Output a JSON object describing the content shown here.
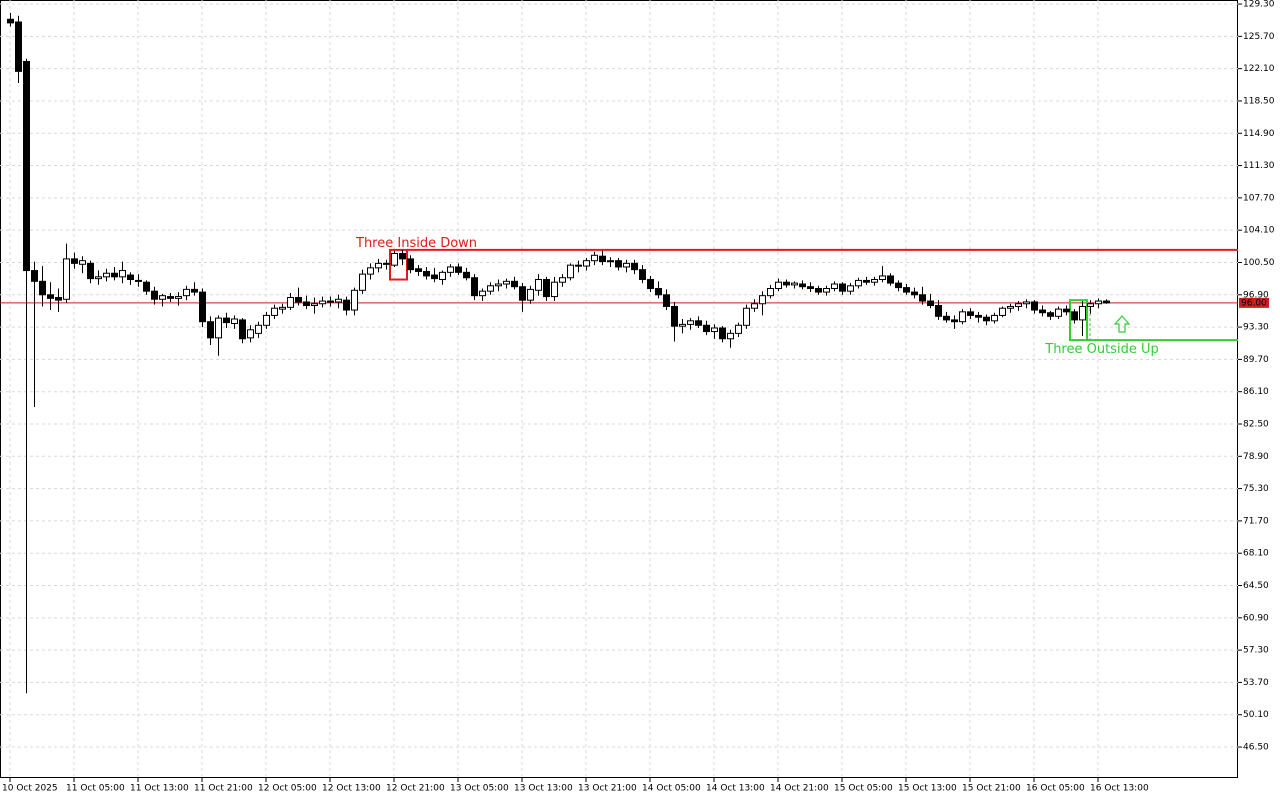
{
  "chart_data": {
    "type": "candlestick",
    "categories": [
      "10 Oct 2025",
      null,
      null,
      null,
      null,
      null,
      null,
      null,
      "11 Oct 05:00",
      null,
      null,
      null,
      null,
      null,
      null,
      null,
      "11 Oct 13:00",
      null,
      null,
      null,
      null,
      null,
      null,
      null,
      "11 Oct 21:00",
      null,
      null,
      null,
      null,
      null,
      null,
      null,
      "12 Oct 05:00",
      null,
      null,
      null,
      null,
      null,
      null,
      null,
      "12 Oct 13:00",
      null,
      null,
      null,
      null,
      null,
      null,
      null,
      "12 Oct 21:00",
      null,
      null,
      null,
      null,
      null,
      null,
      null,
      "13 Oct 05:00",
      null,
      null,
      null,
      null,
      null,
      null,
      null,
      "13 Oct 13:00",
      null,
      null,
      null,
      null,
      null,
      null,
      null,
      "13 Oct 21:00",
      null,
      null,
      null,
      null,
      null,
      null,
      null,
      "14 Oct 05:00",
      null,
      null,
      null,
      null,
      null,
      null,
      null,
      "14 Oct 13:00",
      null,
      null,
      null,
      null,
      null,
      null,
      null,
      "14 Oct 21:00",
      null,
      null,
      null,
      null,
      null,
      null,
      null,
      "15 Oct 05:00",
      null,
      null,
      null,
      null,
      null,
      null,
      null,
      "15 Oct 13:00",
      null,
      null,
      null,
      null,
      null,
      null,
      null,
      "15 Oct 21:00",
      null,
      null,
      null,
      null,
      null,
      null,
      null,
      "16 Oct 05:00",
      null,
      null,
      null,
      null,
      null,
      null,
      null,
      "16 Oct 13:00",
      null
    ],
    "open": [
      127.6,
      127.3,
      122.9,
      99.6,
      98.4,
      96.9,
      96.6,
      96.4,
      100.9,
      100.3,
      100.4,
      98.7,
      98.9,
      99.3,
      98.9,
      99.1,
      98.5,
      98.3,
      97.3,
      96.4,
      96.7,
      96.5,
      96.8,
      97.5,
      97.2,
      93.9,
      92.1,
      94.3,
      93.7,
      94.1,
      92.1,
      92.6,
      93.5,
      94.6,
      95.3,
      95.5,
      96.6,
      96.1,
      95.7,
      95.9,
      96.2,
      96.1,
      96.3,
      95.2,
      97.4,
      99.2,
      99.9,
      100.4,
      100.2,
      101.5,
      100.9,
      99.8,
      99.5,
      99.1,
      98.6,
      99.4,
      100.0,
      99.4,
      98.8,
      96.8,
      97.3,
      97.9,
      98.1,
      98.4,
      97.8,
      96.3,
      97.4,
      98.6,
      96.7,
      98.3,
      98.8,
      100.2,
      100.1,
      100.7,
      101.2,
      100.6,
      100.7,
      100.0,
      100.4,
      99.7,
      98.6,
      97.6,
      96.9,
      95.6,
      93.4,
      93.6,
      94.0,
      93.5,
      92.8,
      93.2,
      92.0,
      92.6,
      93.5,
      95.4,
      95.9,
      96.8,
      97.6,
      98.3,
      98.0,
      98.1,
      97.8,
      97.6,
      97.2,
      97.6,
      98.1,
      97.3,
      97.9,
      98.5,
      98.3,
      98.6,
      99.0,
      98.2,
      97.7,
      97.2,
      96.9,
      96.2,
      95.7,
      94.5,
      94.1,
      93.9,
      95.0,
      94.6,
      94.4,
      94.0,
      94.6,
      95.4,
      95.6,
      95.9,
      96.1,
      95.2,
      94.9,
      94.5,
      95.3,
      95.0,
      94.1,
      95.6,
      95.9,
      96.2
    ],
    "high": [
      128.3,
      128.0,
      123.2,
      100.6,
      100.1,
      98.3,
      97.6,
      102.6,
      101.6,
      101.2,
      100.7,
      99.6,
      99.8,
      100.0,
      100.6,
      99.4,
      99.2,
      98.5,
      97.8,
      97.0,
      97.1,
      97.2,
      97.9,
      98.3,
      97.6,
      94.5,
      94.6,
      94.9,
      94.6,
      94.3,
      93.5,
      93.9,
      95.0,
      95.8,
      95.9,
      97.1,
      97.7,
      96.8,
      96.6,
      96.7,
      96.7,
      96.9,
      96.7,
      97.7,
      99.7,
      100.4,
      100.9,
      100.8,
      101.8,
      101.9,
      101.3,
      100.2,
      100.0,
      99.9,
      99.6,
      100.3,
      100.4,
      99.9,
      99.2,
      97.6,
      98.3,
      98.6,
      98.7,
      98.9,
      98.2,
      97.9,
      99.2,
      98.9,
      98.9,
      99.2,
      100.4,
      100.7,
      101.0,
      101.7,
      101.8,
      101.1,
      101.0,
      100.8,
      100.8,
      100.2,
      99.0,
      98.4,
      97.5,
      96.1,
      94.2,
      94.3,
      94.5,
      94.0,
      93.6,
      93.4,
      93.0,
      93.8,
      95.8,
      96.4,
      97.3,
      98.0,
      98.7,
      98.6,
      98.4,
      98.5,
      98.3,
      97.9,
      97.9,
      98.4,
      98.3,
      98.2,
      98.8,
      98.9,
      98.9,
      100.1,
      99.3,
      98.5,
      98.1,
      97.7,
      97.8,
      97.0,
      96.3,
      95.0,
      94.6,
      95.3,
      95.4,
      95.0,
      94.7,
      94.9,
      95.6,
      95.9,
      96.2,
      96.4,
      96.3,
      95.7,
      95.1,
      95.6,
      95.7,
      95.3,
      96.2,
      96.3,
      96.5,
      96.4
    ],
    "low": [
      126.8,
      120.5,
      52.5,
      84.4,
      95.6,
      95.2,
      95.0,
      96.0,
      99.8,
      99.3,
      98.2,
      98.0,
      98.4,
      98.5,
      98.2,
      98.0,
      97.8,
      96.9,
      95.8,
      95.6,
      96.1,
      95.7,
      96.3,
      96.8,
      93.3,
      91.3,
      90.1,
      93.2,
      93.1,
      91.5,
      91.6,
      92.1,
      93.1,
      94.2,
      94.8,
      95.2,
      95.7,
      95.3,
      94.8,
      95.5,
      95.6,
      95.4,
      94.6,
      94.6,
      97.0,
      98.6,
      99.4,
      99.7,
      100.0,
      100.2,
      99.3,
      99.0,
      98.6,
      98.3,
      98.0,
      98.9,
      99.1,
      98.5,
      96.3,
      96.2,
      96.9,
      97.3,
      97.6,
      97.5,
      95.0,
      95.9,
      96.8,
      96.2,
      96.2,
      97.8,
      98.5,
      99.4,
      99.6,
      100.2,
      100.2,
      100.0,
      99.6,
      99.4,
      99.2,
      98.2,
      97.2,
      96.5,
      95.2,
      91.7,
      92.6,
      93.0,
      93.2,
      92.4,
      92.0,
      91.6,
      91.0,
      92.2,
      93.1,
      95.0,
      94.6,
      96.5,
      97.3,
      97.7,
      97.6,
      97.5,
      97.2,
      96.9,
      96.8,
      97.3,
      96.9,
      96.9,
      97.6,
      98.0,
      97.9,
      98.3,
      97.9,
      97.3,
      96.9,
      96.5,
      95.8,
      95.4,
      94.1,
      93.8,
      93.1,
      93.6,
      94.2,
      93.8,
      93.5,
      93.7,
      94.4,
      94.9,
      95.1,
      95.4,
      94.8,
      94.5,
      94.1,
      94.2,
      94.6,
      93.7,
      92.3,
      94.8,
      95.4,
      95.9
    ],
    "close": [
      127.2,
      121.8,
      99.6,
      98.4,
      96.9,
      96.5,
      96.3,
      100.9,
      100.4,
      100.7,
      98.7,
      98.9,
      99.3,
      98.9,
      99.6,
      98.6,
      98.4,
      97.3,
      96.4,
      96.8,
      96.5,
      96.7,
      97.5,
      97.2,
      93.9,
      92.1,
      94.3,
      93.8,
      94.2,
      92.0,
      93.0,
      93.5,
      94.6,
      95.4,
      95.5,
      96.6,
      96.1,
      95.7,
      95.9,
      96.2,
      96.1,
      96.4,
      95.2,
      97.4,
      99.2,
      99.9,
      100.4,
      100.3,
      101.5,
      100.9,
      99.7,
      99.5,
      99.0,
      98.7,
      99.4,
      100.0,
      99.4,
      98.8,
      96.8,
      97.3,
      97.9,
      98.1,
      98.4,
      97.8,
      96.3,
      97.5,
      98.6,
      96.7,
      98.3,
      98.8,
      100.2,
      100.1,
      100.7,
      101.3,
      100.6,
      100.7,
      100.0,
      100.4,
      99.7,
      98.6,
      97.6,
      96.9,
      95.6,
      93.4,
      93.6,
      94.0,
      93.5,
      92.8,
      93.2,
      92.0,
      92.6,
      93.5,
      95.4,
      95.9,
      96.8,
      97.6,
      98.3,
      98.0,
      98.2,
      97.8,
      97.6,
      97.2,
      97.6,
      98.1,
      97.3,
      97.9,
      98.5,
      98.3,
      98.6,
      99.0,
      98.2,
      97.7,
      97.2,
      96.9,
      96.2,
      95.7,
      94.5,
      94.1,
      93.9,
      95.0,
      94.6,
      94.4,
      94.0,
      94.6,
      95.4,
      95.6,
      95.9,
      96.1,
      95.2,
      94.9,
      94.5,
      95.3,
      95.0,
      94.1,
      95.6,
      95.9,
      96.2,
      96.0
    ],
    "up_color": "#ffffff",
    "down_color": "#000000",
    "outline_color": "#000000",
    "ylim": [
      43.05,
      129.75
    ],
    "yticks": [
      {
        "value": 46.5,
        "label": "46.50"
      },
      {
        "value": 50.1,
        "label": "50.10"
      },
      {
        "value": 53.7,
        "label": "53.70"
      },
      {
        "value": 57.3,
        "label": "57.30"
      },
      {
        "value": 60.9,
        "label": "60.90"
      },
      {
        "value": 64.5,
        "label": "64.50"
      },
      {
        "value": 68.1,
        "label": "68.10"
      },
      {
        "value": 71.7,
        "label": "71.70"
      },
      {
        "value": 75.3,
        "label": "75.30"
      },
      {
        "value": 78.9,
        "label": "78.90"
      },
      {
        "value": 82.5,
        "label": "82.50"
      },
      {
        "value": 86.1,
        "label": "86.10"
      },
      {
        "value": 89.7,
        "label": "89.70"
      },
      {
        "value": 93.3,
        "label": "93.30"
      },
      {
        "value": 96.9,
        "label": "96.90"
      },
      {
        "value": 100.5,
        "label": "100.50"
      },
      {
        "value": 104.1,
        "label": "104.10"
      },
      {
        "value": 107.7,
        "label": "107.70"
      },
      {
        "value": 111.3,
        "label": "111.30"
      },
      {
        "value": 114.9,
        "label": "114.90"
      },
      {
        "value": 118.5,
        "label": "118.50"
      },
      {
        "value": 122.1,
        "label": "122.10"
      },
      {
        "value": 125.7,
        "label": "125.70"
      },
      {
        "value": 129.3,
        "label": "129.30"
      }
    ],
    "grid": true,
    "current_price": {
      "value": 96.0,
      "label": "96.00",
      "color": "#c81e1e"
    },
    "annotations": [
      {
        "text": "Three Inside Down",
        "color": "#e41a1a",
        "level": 101.9,
        "box": [
          101.9,
          98.6
        ]
      },
      {
        "text": "Three Outside Up",
        "color": "#33cc33",
        "level": 91.85,
        "box": [
          96.3,
          91.85
        ]
      }
    ]
  }
}
